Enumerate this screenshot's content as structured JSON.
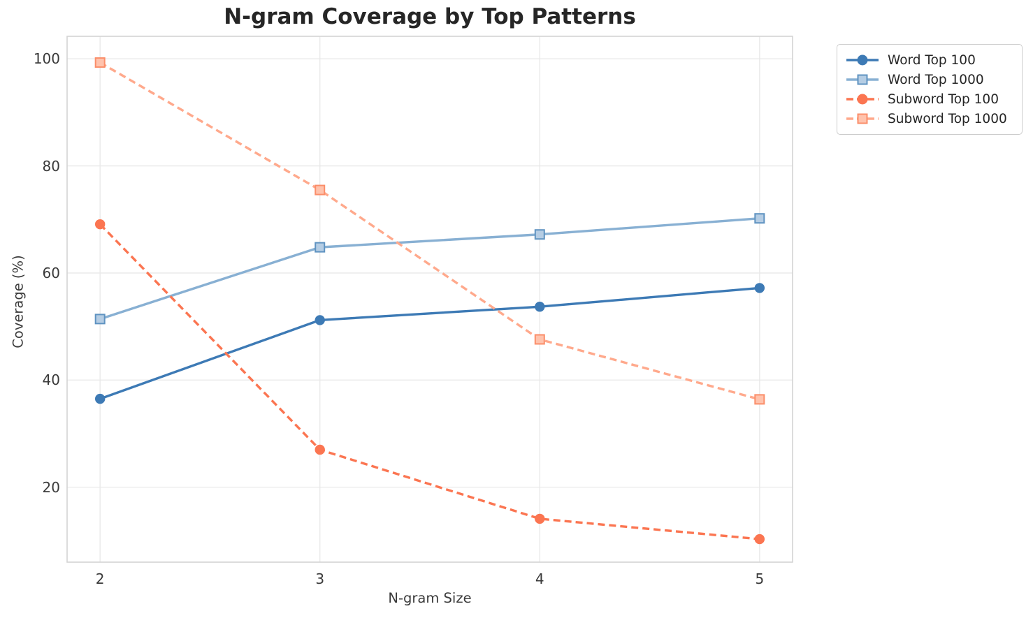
{
  "figure": {
    "background": "#ffffff"
  },
  "chart_data": {
    "type": "line",
    "title": "N-gram Coverage by Top Patterns",
    "xlabel": "N-gram Size",
    "ylabel": "Coverage (%)",
    "x": [
      2,
      3,
      4,
      5
    ],
    "xtick_labels": [
      "2",
      "3",
      "4",
      "5"
    ],
    "ytick_values": [
      20,
      40,
      60,
      80,
      100
    ],
    "ytick_labels": [
      "20",
      "40",
      "60",
      "80",
      "100"
    ],
    "xlim": [
      1.85,
      5.15
    ],
    "ylim": [
      6.0,
      104.2
    ],
    "grid": true,
    "grid_color": "#e8e8e8",
    "spine_color": "#d4d4d4",
    "legend_position": "outside-top-right",
    "series": [
      {
        "name": "Word Top 100",
        "values": [
          36.5,
          51.2,
          53.7,
          57.2
        ],
        "color": "#3d7ab5",
        "marker_edge": "#3d7ab5",
        "marker_fill": "#3d7ab5",
        "line_style": "solid",
        "marker": "circle"
      },
      {
        "name": "Word Top 1000",
        "values": [
          51.4,
          64.8,
          67.2,
          70.2
        ],
        "color": "#88b0d3",
        "marker_edge": "#5f93c1",
        "marker_fill": "#b5cde4",
        "line_style": "solid",
        "marker": "square"
      },
      {
        "name": "Subword Top 100",
        "values": [
          69.1,
          27.0,
          14.1,
          10.3
        ],
        "color": "#fb7551",
        "marker_edge": "#fb7551",
        "marker_fill": "#fb7551",
        "line_style": "dashed",
        "marker": "circle"
      },
      {
        "name": "Subword Top 1000",
        "values": [
          99.3,
          75.5,
          47.6,
          36.4
        ],
        "color": "#ffa98c",
        "marker_edge": "#fb8e6a",
        "marker_fill": "#ffc3ad",
        "line_style": "dashed",
        "marker": "square"
      }
    ]
  }
}
